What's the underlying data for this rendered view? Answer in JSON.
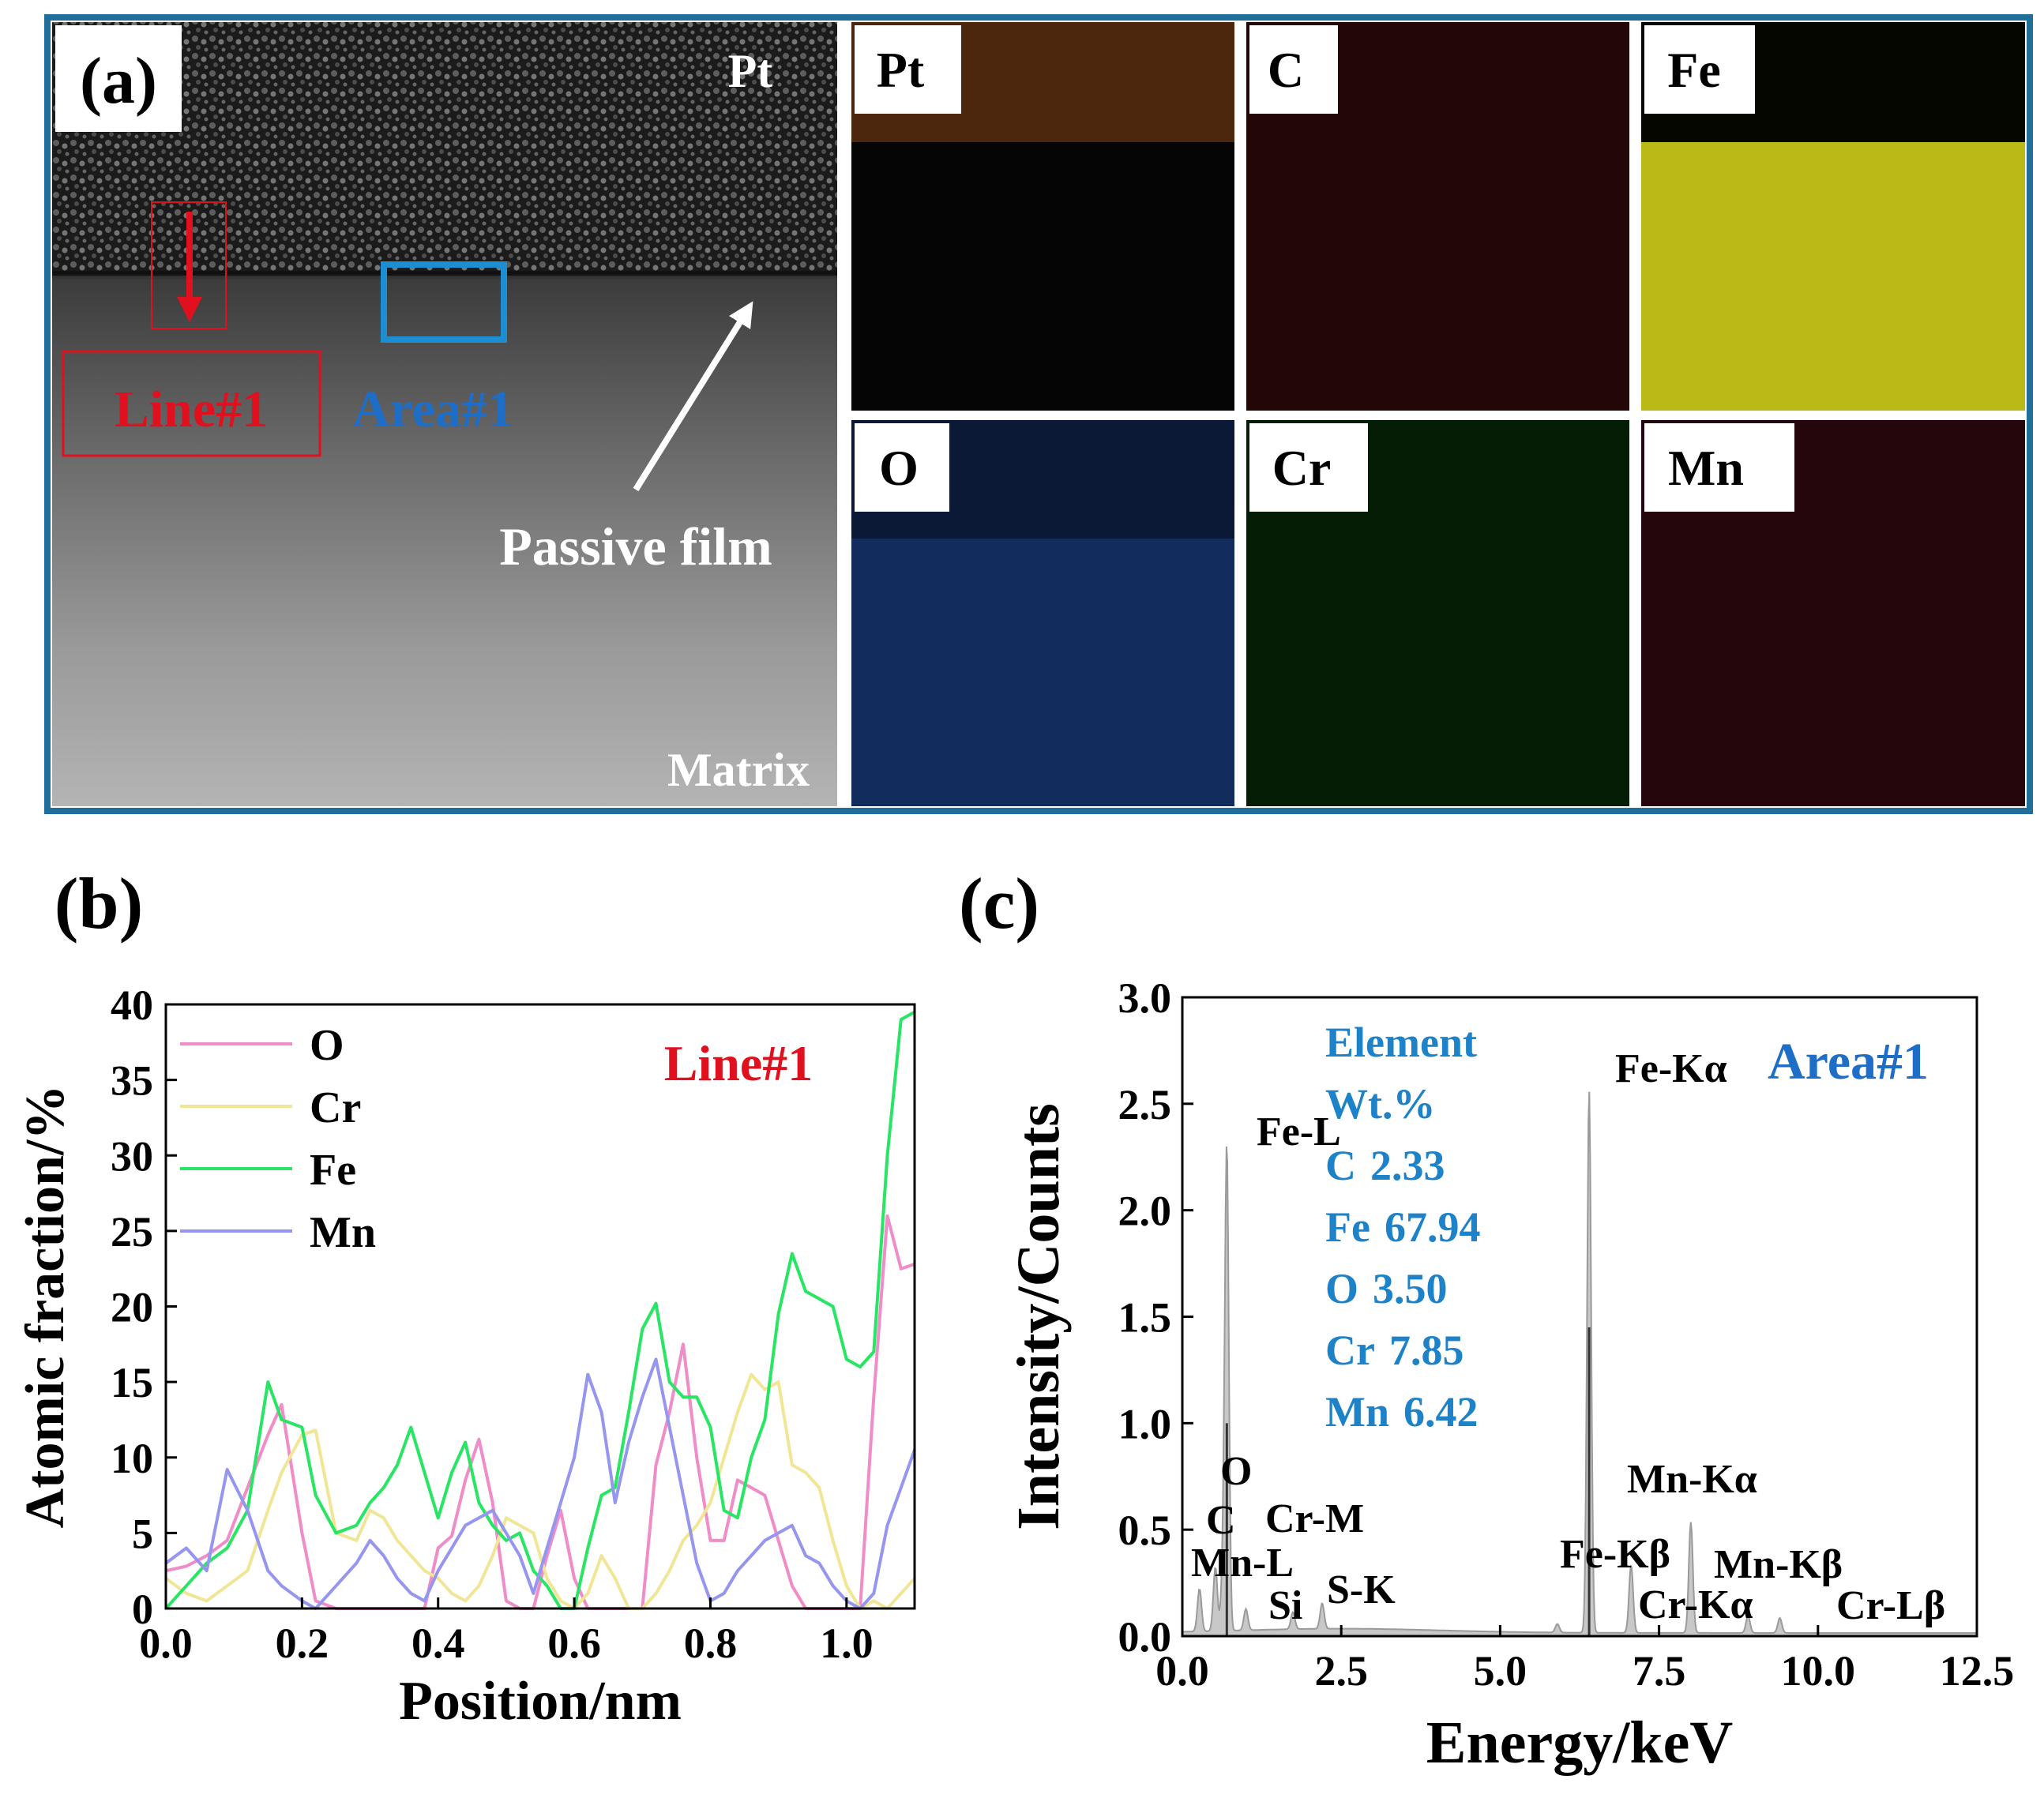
{
  "panel_a": {
    "label": "(a)",
    "tem": {
      "top_label": "Pt",
      "bottom_label": "Matrix",
      "line_label": "Line#1",
      "area_label": "Area#1",
      "film_label": "Passive film"
    },
    "maps": [
      {
        "element": "Pt",
        "color": "#d2641e"
      },
      {
        "element": "C",
        "color": "#b41e1e"
      },
      {
        "element": "Fe",
        "color": "#e6e61e"
      },
      {
        "element": "O",
        "color": "#2864d2"
      },
      {
        "element": "Cr",
        "color": "#1ea01e"
      },
      {
        "element": "Mn",
        "color": "#b41e3c"
      }
    ],
    "frame_color": "#1f6f9a"
  },
  "panel_b": {
    "label": "(b)"
  },
  "panel_c": {
    "label": "(c)"
  },
  "chart_data": [
    {
      "type": "line",
      "title": "",
      "annotation": "Line#1",
      "xlabel": "Position/nm",
      "ylabel": "Atomic fraction/%",
      "xlim": [
        0.0,
        1.1
      ],
      "ylim": [
        0,
        40
      ],
      "xticks": [
        "0.0",
        "0.2",
        "0.4",
        "0.6",
        "0.8",
        "1.0"
      ],
      "yticks": [
        "0",
        "5",
        "10",
        "15",
        "20",
        "25",
        "30",
        "35",
        "40"
      ],
      "legend_position": "top-left",
      "series": [
        {
          "name": "O",
          "color": "#f08cc8",
          "x": [
            0.0,
            0.03,
            0.06,
            0.09,
            0.12,
            0.15,
            0.17,
            0.2,
            0.22,
            0.25,
            0.28,
            0.3,
            0.32,
            0.34,
            0.36,
            0.38,
            0.4,
            0.42,
            0.44,
            0.46,
            0.48,
            0.5,
            0.52,
            0.54,
            0.56,
            0.58,
            0.6,
            0.62,
            0.64,
            0.66,
            0.68,
            0.7,
            0.72,
            0.74,
            0.76,
            0.78,
            0.8,
            0.82,
            0.84,
            0.86,
            0.88,
            0.9,
            0.92,
            0.94,
            0.96,
            0.98,
            1.0,
            1.02,
            1.04,
            1.06,
            1.08,
            1.1
          ],
          "y": [
            2.5,
            2.8,
            3.5,
            4.5,
            8.0,
            11.5,
            13.5,
            5.0,
            0.5,
            0,
            0,
            0,
            0,
            0,
            0,
            0,
            4.0,
            4.8,
            8.5,
            11.2,
            7.0,
            0.5,
            0,
            0,
            3.5,
            6.5,
            2.0,
            0,
            0,
            0,
            0,
            0,
            9.5,
            13.0,
            17.5,
            10.0,
            4.5,
            4.5,
            8.5,
            8.0,
            7.5,
            4.5,
            1.5,
            0,
            0,
            0,
            0,
            0,
            14.0,
            26.0,
            22.5,
            22.8
          ]
        },
        {
          "name": "Cr",
          "color": "#f0e696",
          "x": [
            0.0,
            0.03,
            0.06,
            0.09,
            0.12,
            0.15,
            0.17,
            0.2,
            0.22,
            0.25,
            0.28,
            0.3,
            0.32,
            0.34,
            0.36,
            0.38,
            0.4,
            0.42,
            0.44,
            0.46,
            0.48,
            0.5,
            0.52,
            0.54,
            0.56,
            0.58,
            0.6,
            0.62,
            0.64,
            0.66,
            0.68,
            0.7,
            0.72,
            0.74,
            0.76,
            0.78,
            0.8,
            0.82,
            0.84,
            0.86,
            0.88,
            0.9,
            0.92,
            0.94,
            0.96,
            0.98,
            1.0,
            1.02,
            1.04,
            1.06,
            1.08,
            1.1
          ],
          "y": [
            2.0,
            1.0,
            0.5,
            1.5,
            2.5,
            6.5,
            9.0,
            11.5,
            11.8,
            5.0,
            4.5,
            6.5,
            6.0,
            4.5,
            3.5,
            2.5,
            2.0,
            1.0,
            0.5,
            1.5,
            3.5,
            6.0,
            5.5,
            5.0,
            2.0,
            0.5,
            0,
            1.0,
            3.5,
            2.0,
            0,
            0,
            1.0,
            2.5,
            4.5,
            5.5,
            7.0,
            10.0,
            13.0,
            15.5,
            14.5,
            15.0,
            9.5,
            9.0,
            8.0,
            4.5,
            1.5,
            0,
            0.5,
            0,
            1.0,
            2.0
          ]
        },
        {
          "name": "Fe",
          "color": "#28e664",
          "x": [
            0.0,
            0.03,
            0.06,
            0.09,
            0.12,
            0.15,
            0.17,
            0.2,
            0.22,
            0.25,
            0.28,
            0.3,
            0.32,
            0.34,
            0.36,
            0.38,
            0.4,
            0.42,
            0.44,
            0.46,
            0.48,
            0.5,
            0.52,
            0.54,
            0.56,
            0.58,
            0.6,
            0.62,
            0.64,
            0.66,
            0.68,
            0.7,
            0.72,
            0.74,
            0.76,
            0.78,
            0.8,
            0.82,
            0.84,
            0.86,
            0.88,
            0.9,
            0.92,
            0.94,
            0.96,
            0.98,
            1.0,
            1.02,
            1.04,
            1.06,
            1.08,
            1.1
          ],
          "y": [
            0,
            1.5,
            3.0,
            4.0,
            6.5,
            15.0,
            12.5,
            12.0,
            7.5,
            5.0,
            5.5,
            7.0,
            8.0,
            9.5,
            12.0,
            9.0,
            6.0,
            9.0,
            11.0,
            7.0,
            5.5,
            4.5,
            5.0,
            2.5,
            1.5,
            0,
            0,
            4.0,
            7.5,
            8.0,
            13.0,
            18.5,
            20.2,
            15.0,
            14.0,
            14.0,
            12.0,
            6.5,
            6.0,
            10.0,
            12.5,
            19.5,
            23.5,
            21.0,
            20.5,
            20.0,
            16.5,
            16.0,
            17.0,
            30.0,
            39.0,
            39.5
          ]
        },
        {
          "name": "Mn",
          "color": "#9696f0",
          "x": [
            0.0,
            0.03,
            0.06,
            0.09,
            0.12,
            0.15,
            0.17,
            0.2,
            0.22,
            0.25,
            0.28,
            0.3,
            0.32,
            0.34,
            0.36,
            0.38,
            0.4,
            0.42,
            0.44,
            0.46,
            0.48,
            0.5,
            0.52,
            0.54,
            0.56,
            0.58,
            0.6,
            0.62,
            0.64,
            0.66,
            0.68,
            0.7,
            0.72,
            0.74,
            0.76,
            0.78,
            0.8,
            0.82,
            0.84,
            0.86,
            0.88,
            0.9,
            0.92,
            0.94,
            0.96,
            0.98,
            1.0,
            1.02,
            1.04,
            1.06,
            1.08,
            1.1
          ],
          "y": [
            3.0,
            4.0,
            2.5,
            9.2,
            6.5,
            2.5,
            1.5,
            0.5,
            0,
            1.5,
            3.0,
            4.5,
            3.5,
            2.0,
            1.0,
            0.5,
            2.5,
            4.0,
            5.5,
            6.0,
            6.5,
            5.0,
            3.5,
            1.0,
            4.0,
            7.0,
            10.0,
            15.5,
            13.0,
            7.0,
            11.0,
            14.0,
            16.5,
            12.0,
            7.5,
            3.0,
            0.5,
            1.0,
            2.5,
            3.5,
            4.5,
            5.0,
            5.5,
            3.5,
            3.0,
            1.5,
            0.5,
            0,
            1.0,
            5.5,
            8.0,
            10.5
          ]
        }
      ]
    },
    {
      "type": "area",
      "title": "",
      "annotation": "Area#1",
      "xlabel": "Energy/keV",
      "ylabel": "Intensity/Counts",
      "xlim": [
        0.0,
        12.5
      ],
      "ylim": [
        0.0,
        3.0
      ],
      "xticks": [
        "0.0",
        "2.5",
        "5.0",
        "7.5",
        "10.0",
        "12.5"
      ],
      "yticks": [
        "0.0",
        "0.5",
        "1.0",
        "1.5",
        "2.0",
        "2.5",
        "3.0"
      ],
      "peaks": [
        {
          "energy": 0.27,
          "intensity": 0.2
        },
        {
          "energy": 0.52,
          "intensity": 0.3
        },
        {
          "energy": 0.64,
          "intensity": 0.25
        },
        {
          "energy": 0.7,
          "intensity": 2.25
        },
        {
          "energy": 1.0,
          "intensity": 0.1
        },
        {
          "energy": 1.74,
          "intensity": 0.08
        },
        {
          "energy": 2.2,
          "intensity": 0.12
        },
        {
          "energy": 5.9,
          "intensity": 0.04
        },
        {
          "energy": 6.4,
          "intensity": 2.55
        },
        {
          "energy": 7.06,
          "intensity": 0.32
        },
        {
          "energy": 8.0,
          "intensity": 0.52
        },
        {
          "energy": 8.9,
          "intensity": 0.08
        },
        {
          "energy": 9.4,
          "intensity": 0.07
        }
      ],
      "peak_labels": [
        {
          "text": "Fe-L",
          "energy": 0.7,
          "intensity": 2.25
        },
        {
          "text": "O",
          "energy": 0.52,
          "intensity": 0.72
        },
        {
          "text": "C",
          "energy": 0.27,
          "intensity": 0.42
        },
        {
          "text": "Mn-L",
          "energy": 0.64,
          "intensity": 0.32
        },
        {
          "text": "Cr-M",
          "energy": 1.74,
          "intensity": 0.42
        },
        {
          "text": "Si",
          "energy": 1.74,
          "intensity": 0.12
        },
        {
          "text": "S-K",
          "energy": 2.2,
          "intensity": 0.2
        },
        {
          "text": "Fe-Kα",
          "energy": 6.4,
          "intensity": 2.55
        },
        {
          "text": "Mn-Kα",
          "energy": 8.0,
          "intensity": 0.65
        },
        {
          "text": "Fe-Kβ",
          "energy": 7.06,
          "intensity": 0.4
        },
        {
          "text": "Mn-Kβ",
          "energy": 8.9,
          "intensity": 0.34
        },
        {
          "text": "Cr-Kα",
          "energy": 8.0,
          "intensity": 0.14
        },
        {
          "text": "Cr-Lβ",
          "energy": 11.1,
          "intensity": 0.14
        }
      ],
      "composition_header": [
        "Element",
        "Wt.%"
      ],
      "composition": [
        {
          "element": "C",
          "wt": "2.33"
        },
        {
          "element": "Fe",
          "wt": "67.94"
        },
        {
          "element": "O",
          "wt": "3.50"
        },
        {
          "element": "Cr",
          "wt": "7.85"
        },
        {
          "element": "Mn",
          "wt": "6.42"
        }
      ]
    }
  ]
}
